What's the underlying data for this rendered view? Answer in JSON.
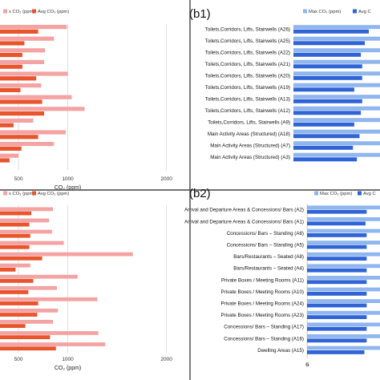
{
  "colors": {
    "max_left": "#f4a3a3",
    "avg_left": "#e8542c",
    "max_right": "#8fb6ee",
    "avg_right": "#2f63d6",
    "grid": "#d9d9d9",
    "divider": "#444444"
  },
  "chart_data": [
    {
      "id": "top-left",
      "type": "bar",
      "orientation": "horizontal",
      "legend": [
        "x CO₂ (ppm)",
        "Avg CO₂ (ppm)"
      ],
      "legend_position": "top",
      "xlabel": "CO₂ (ppm)",
      "xticks": [
        "500",
        "1000",
        "2000"
      ],
      "xlim": [
        0,
        2000
      ],
      "series": [
        {
          "name": "Max CO₂ (ppm)",
          "values": [
            990,
            860,
            770,
            760,
            1000,
            730,
            1040,
            1170,
            650,
            980,
            860,
            500
          ]
        },
        {
          "name": "Avg CO₂ (ppm)",
          "values": [
            700,
            560,
            540,
            540,
            680,
            520,
            740,
            760,
            450,
            700,
            530,
            410
          ]
        }
      ]
    },
    {
      "id": "top-right",
      "label": "(b1)",
      "type": "bar",
      "orientation": "horizontal",
      "legend": [
        "Max CO₂ (ppm)",
        "Avg C"
      ],
      "legend_position": "top",
      "categories": [
        "Toilets,Corridors, Lifts, Stairwells (A26)",
        "Toilets,Corridors, Lifts, Stairwells (A25)",
        "Toilets,Corridors, Lifts, Stairwells (A22)",
        "Toilets,Corridors, Lifts, Stairwells (A21)",
        "Toilets,Corridors, Lifts, Stairwells (A20)",
        "Toilets,Corridors, Lifts, Stairwells (A19)",
        "Toilets,Corridors, Lifts, Stairwells (A13)",
        "Toilets,Corridors, Lifts, Stairwells (A12)",
        "Toilets,Corridors, Lifts, Stairwells (A9)",
        "Main Activity Areas (Structured) (A18)",
        "Main Activity Areas (Structured) (A7)",
        "Main Activity Areas (Structured) (A3)"
      ],
      "xlim": [
        0,
        600
      ],
      "series": [
        {
          "name": "Max CO₂ (ppm)",
          "values": [
            880,
            880,
            880,
            880,
            880,
            880,
            880,
            880,
            880,
            880,
            880,
            880
          ]
        },
        {
          "name": "Avg",
          "values": [
            570,
            540,
            510,
            520,
            520,
            460,
            520,
            510,
            460,
            500,
            450,
            480
          ]
        }
      ]
    },
    {
      "id": "bottom-left",
      "type": "bar",
      "orientation": "horizontal",
      "legend": [
        "x CO₂ (ppm)",
        "Avg CO₂ (ppm)"
      ],
      "legend_position": "top",
      "xlabel": "CO₂ (ppm)",
      "xticks": [
        "500",
        "1000",
        "2000"
      ],
      "xlim": [
        0,
        2000
      ],
      "series": [
        {
          "name": "Max CO₂ (ppm)",
          "values": [
            850,
            810,
            840,
            960,
            1660,
            620,
            1100,
            890,
            1300,
            900,
            850,
            1310,
            1380
          ]
        },
        {
          "name": "Avg CO₂ (ppm)",
          "values": [
            630,
            610,
            620,
            610,
            740,
            470,
            650,
            600,
            700,
            690,
            570,
            820,
            880
          ]
        }
      ]
    },
    {
      "id": "bottom-right",
      "label": "(b2)",
      "type": "bar",
      "orientation": "horizontal",
      "legend": [
        "Max CO₂ (ppm)",
        "Avg C"
      ],
      "legend_position": "top",
      "categories": [
        "Arrival and Departure Areas & Concessions/ Bars (A2)",
        "Arrival and Departure Areas & Concessions/ Bars (A1)",
        "Concessions/ Bars – Standing (A6)",
        "Concessions/ Bars – Standing (A5)",
        "Bars/Restaurants – Seated (A8)",
        "Bars/Restaurants – Seated (A4)",
        "Private Boxes / Meeting Rooms (A11)",
        "Private Boxes / Meeting Rooms (A10)",
        "Private Boxes / Meeting Rooms (A24)",
        "Private Boxes / Meeting Rooms (A23)",
        "Concessions/ Bars – Standing (A17)",
        "Concessions/ Bars – Standing (A16)",
        "Dwelling Areas (A15)"
      ],
      "xticks": [
        "0",
        "5"
      ],
      "xlim": [
        0,
        600
      ],
      "series": [
        {
          "name": "Max CO₂ (ppm)",
          "values": [
            880,
            880,
            880,
            880,
            880,
            880,
            880,
            880,
            880,
            880,
            880,
            880,
            880
          ]
        },
        {
          "name": "Avg",
          "values": [
            520,
            510,
            520,
            520,
            520,
            520,
            520,
            520,
            520,
            520,
            520,
            520,
            500
          ]
        }
      ]
    }
  ]
}
